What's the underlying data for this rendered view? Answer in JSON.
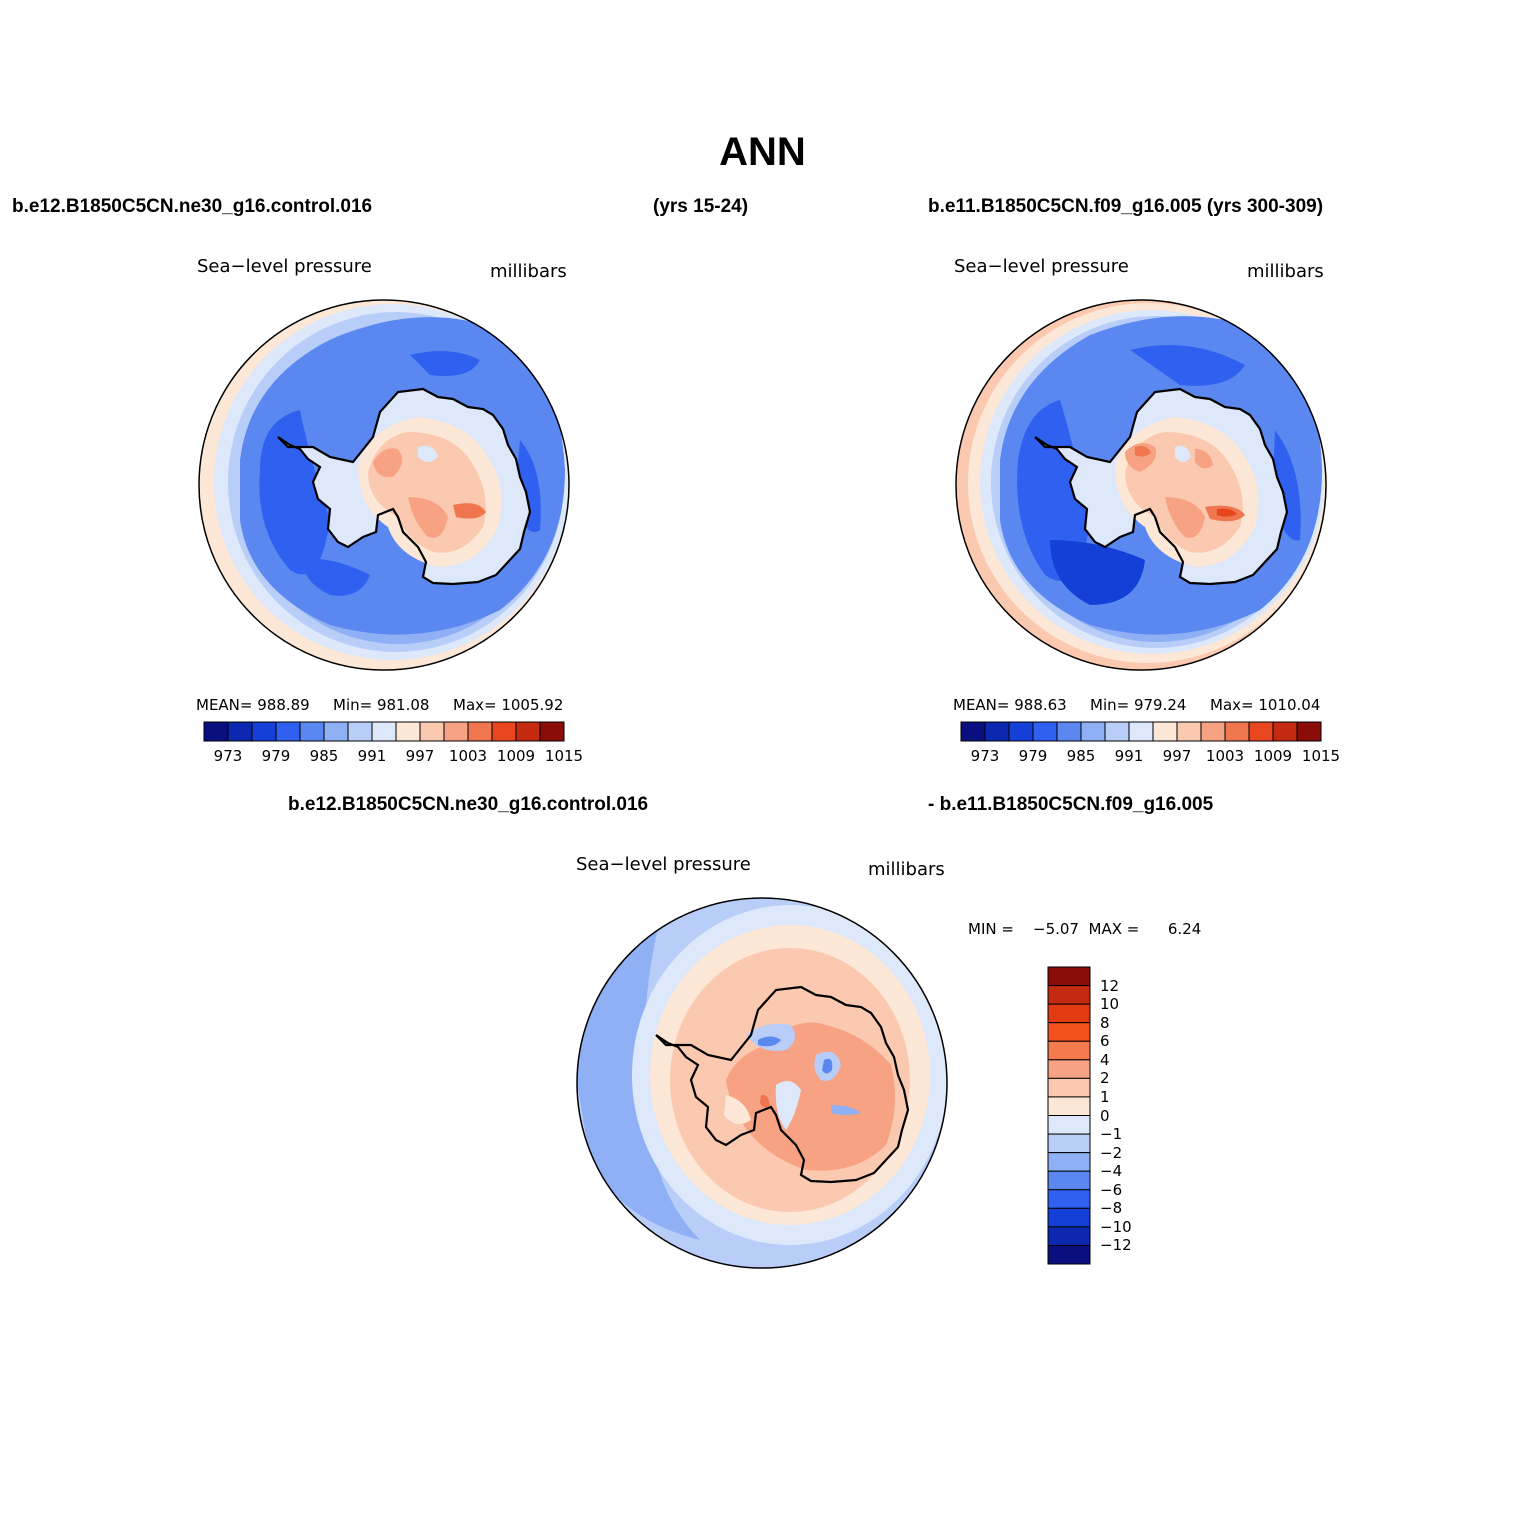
{
  "title": "ANN",
  "header": {
    "left": "b.e12.B1850C5CN.ne30_g16.control.016",
    "mid": "(yrs 15-24)",
    "right": "b.e11.B1850C5CN.f09_g16.005 (yrs 300-309)",
    "diff_left": "b.e12.B1850C5CN.ne30_g16.control.016",
    "diff_right": "- b.e11.B1850C5CN.f09_g16.005"
  },
  "panels": [
    {
      "variable": "Sea−level pressure",
      "units": "millibars",
      "mean_text": "MEAN=  988.89",
      "min_text": "Min=  981.08",
      "max_text": "Max=  1005.92"
    },
    {
      "variable": "Sea−level pressure",
      "units": "millibars",
      "mean_text": "MEAN=  988.63",
      "min_text": "Min=  979.24",
      "max_text": "Max=  1010.04"
    },
    {
      "variable": "Sea−level pressure",
      "units": "millibars",
      "minmax_text": "MIN =    −5.07  MAX =      6.24"
    }
  ],
  "colorbar_abs": {
    "tick_labels": [
      "973",
      "979",
      "985",
      "991",
      "997",
      "1003",
      "1009",
      "1015"
    ],
    "colors": [
      "#0a0f80",
      "#0d28b0",
      "#1440d8",
      "#3060f0",
      "#5b88f0",
      "#8fb0f5",
      "#b8cdf8",
      "#dde8fb",
      "#fde7d6",
      "#fbc9b0",
      "#f6a283",
      "#f07650",
      "#e8461f",
      "#c42a10",
      "#8a0d0a"
    ]
  },
  "colorbar_diff": {
    "tick_labels": [
      "12",
      "10",
      "8",
      "6",
      "4",
      "2",
      "1",
      "0",
      "−1",
      "−2",
      "−4",
      "−6",
      "−8",
      "−10",
      "−12"
    ],
    "colors": [
      "#8a0d0a",
      "#c42a10",
      "#e23a12",
      "#f2531e",
      "#f57a4e",
      "#f6a283",
      "#fbc9b0",
      "#fde7d6",
      "#dde8fb",
      "#b8cdf8",
      "#8fb0f5",
      "#5b88f0",
      "#3060f0",
      "#1440d8",
      "#0d28b0",
      "#0a0f80"
    ]
  }
}
